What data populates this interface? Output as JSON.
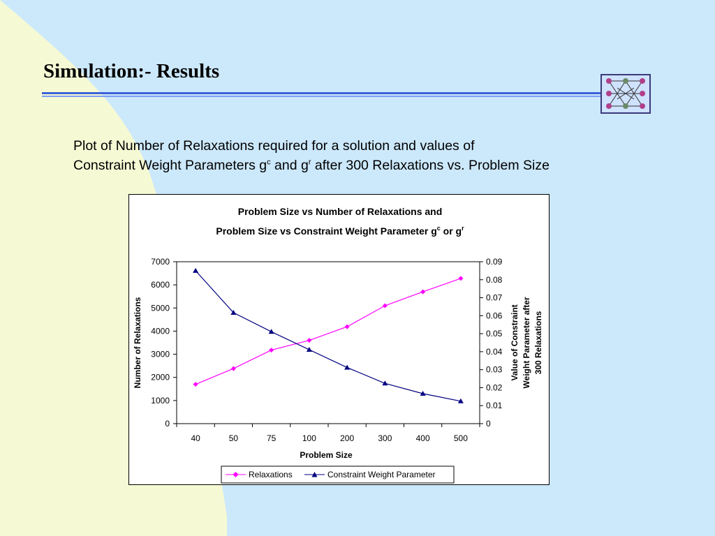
{
  "slide": {
    "title": "Simulation:- Results",
    "subtitle_line1": "Plot of Number of Relaxations required for a solution and values of",
    "subtitle_line2_a": "Constraint Weight Parameters g",
    "subtitle_sup1": "c",
    "subtitle_line2_b": " and g",
    "subtitle_sup2": "r",
    "subtitle_line2_c": " after 300 Relaxations vs. Problem Size"
  },
  "colors": {
    "background": "#cce8fb",
    "background_shape": "#f6fad4",
    "rule_dark": "#3c62d8",
    "rule_light": "#7d9ff2",
    "relaxations_series": "#ff00ff",
    "constraint_series": "#000080"
  },
  "chart_data": {
    "type": "line",
    "title_line1": "Problem Size vs Number of Relaxations and",
    "title_line2": "Problem Size vs Constraint Weight Parameter g",
    "title_sup1": "c",
    "title_mid": " or g",
    "title_sup2": "r",
    "xlabel": "Problem Size",
    "ylabel_left": "Number of Relaxations",
    "ylabel_right_lines": [
      "Value of Constraint",
      "Weight Parameter after",
      "300 Relaxations"
    ],
    "categories": [
      "40",
      "50",
      "75",
      "100",
      "200",
      "300",
      "400",
      "500"
    ],
    "ylim_left": [
      0,
      7000
    ],
    "yticks_left": [
      "0",
      "1000",
      "2000",
      "3000",
      "4000",
      "5000",
      "6000",
      "7000"
    ],
    "ylim_right": [
      0,
      0.09
    ],
    "yticks_right": [
      "0",
      "0.01",
      "0.02",
      "0.03",
      "0.04",
      "0.05",
      "0.06",
      "0.07",
      "0.08",
      "0.09"
    ],
    "grid": false,
    "legend_position": "bottom",
    "series": [
      {
        "name": "Relaxations",
        "axis": "left",
        "marker": "diamond",
        "color": "#ff00ff",
        "values": [
          1700,
          2380,
          3180,
          3600,
          4190,
          5100,
          5700,
          6280
        ]
      },
      {
        "name": "Constraint Weight Parameter",
        "axis": "right",
        "marker": "triangle",
        "color": "#000080",
        "values": [
          0.085,
          0.0617,
          0.0511,
          0.0411,
          0.0312,
          0.0224,
          0.0167,
          0.0125
        ]
      }
    ]
  }
}
